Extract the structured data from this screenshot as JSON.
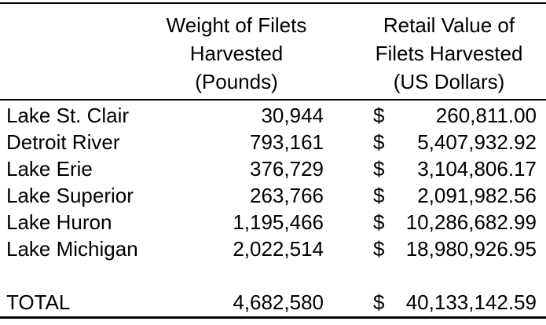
{
  "colors": {
    "background": "#ffffff",
    "text": "#000000",
    "border": "#000000"
  },
  "header": {
    "weight_col": [
      "Weight of Filets",
      "Harvested",
      "(Pounds)"
    ],
    "retail_col": [
      "Retail Value of",
      "Filets Harvested",
      "(US Dollars)"
    ]
  },
  "rows": [
    {
      "label": "Lake St. Clair",
      "weight": "30,944",
      "currency": "$",
      "value": "260,811.00"
    },
    {
      "label": "Detroit River",
      "weight": "793,161",
      "currency": "$",
      "value": "5,407,932.92"
    },
    {
      "label": "Lake Erie",
      "weight": "376,729",
      "currency": "$",
      "value": "3,104,806.17"
    },
    {
      "label": "Lake Superior",
      "weight": "263,766",
      "currency": "$",
      "value": "2,091,982.56"
    },
    {
      "label": "Lake Huron",
      "weight": "1,195,466",
      "currency": "$",
      "value": "10,286,682.99"
    },
    {
      "label": "Lake Michigan",
      "weight": "2,022,514",
      "currency": "$",
      "value": "18,980,926.95"
    }
  ],
  "total": {
    "label": "TOTAL",
    "weight": "4,682,580",
    "currency": "$",
    "value": "40,133,142.59"
  },
  "chart_data": {
    "type": "table",
    "columns": [
      "",
      "Weight of Filets Harvested (Pounds)",
      "Retail Value of Filets Harvested (US Dollars)"
    ],
    "rows": [
      [
        "Lake St. Clair",
        30944,
        260811.0
      ],
      [
        "Detroit River",
        793161,
        5407932.92
      ],
      [
        "Lake Erie",
        376729,
        3104806.17
      ],
      [
        "Lake Superior",
        263766,
        2091982.56
      ],
      [
        "Lake Huron",
        1195466,
        10286682.99
      ],
      [
        "Lake Michigan",
        2022514,
        18980926.95
      ],
      [
        "TOTAL",
        4682580,
        40133142.59
      ]
    ]
  }
}
